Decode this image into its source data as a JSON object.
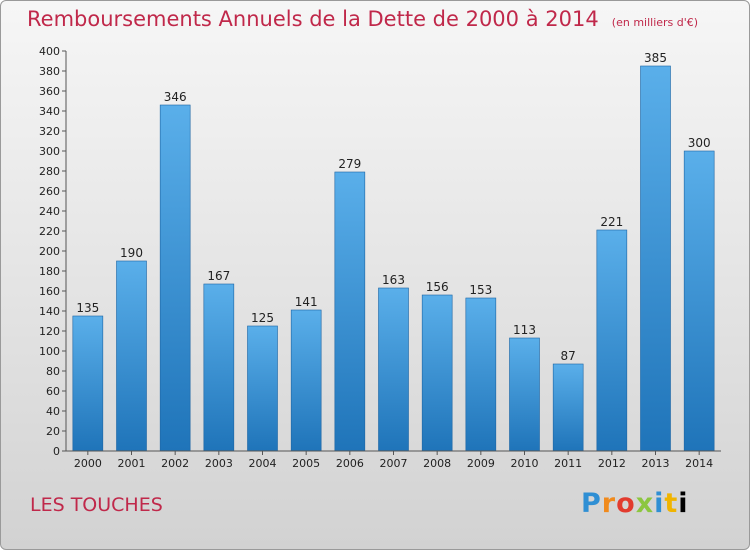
{
  "header": {
    "title": "Remboursements Annuels de la Dette de 2000 à 2014",
    "subtitle": "(en milliers d'€)"
  },
  "footer": {
    "commune": "LES TOUCHES",
    "brand": "Proxiti"
  },
  "colors": {
    "accent": "#c0284a",
    "bar_top": "#5aafea",
    "bar_bottom": "#1f74b9"
  },
  "chart_data": {
    "type": "bar",
    "title": "Remboursements Annuels de la Dette de 2000 à 2014",
    "subtitle": "(en milliers d'€)",
    "xlabel": "",
    "ylabel": "",
    "categories": [
      "2000",
      "2001",
      "2002",
      "2003",
      "2004",
      "2005",
      "2006",
      "2007",
      "2008",
      "2009",
      "2010",
      "2011",
      "2012",
      "2013",
      "2014"
    ],
    "values": [
      135,
      190,
      346,
      167,
      125,
      141,
      279,
      163,
      156,
      153,
      113,
      87,
      221,
      385,
      300
    ],
    "ylim": [
      0,
      400
    ],
    "ytick_step": 20,
    "grid": false,
    "legend": "none",
    "data_labels": true
  }
}
